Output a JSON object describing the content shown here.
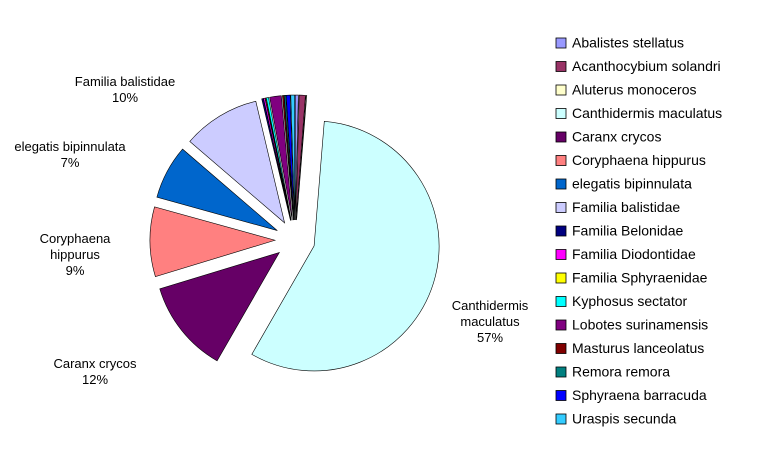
{
  "chart_data": {
    "type": "pie",
    "categories": [
      "Abalistes stellatus",
      "Acanthocybium solandri",
      "Aluterus monoceros",
      "Canthidermis maculatus",
      "Caranx crycos",
      "Coryphaena hippurus",
      "elegatis bipinnulata",
      "Familia balistidae",
      "Familia Belonidae",
      "Familia Diodontidae",
      "Familia Sphyraenidae",
      "Kyphosus sectator",
      "Lobotes surinamensis",
      "Masturus lanceolatus",
      "Remora remora",
      "Sphyraena barracuda",
      "Uraspis secunda"
    ],
    "values": [
      0.4,
      0.8,
      0.1,
      57,
      12,
      9,
      7,
      10,
      0.2,
      0.2,
      0.1,
      0.3,
      1.5,
      0.2,
      0.2,
      0.5,
      0.5
    ],
    "value_labels": [
      null,
      null,
      null,
      "57%",
      "12%",
      "9%",
      "7%",
      "10%",
      null,
      null,
      null,
      null,
      null,
      null,
      null,
      null,
      null
    ],
    "colors": [
      "#9999ff",
      "#993366",
      "#ffffcc",
      "#ccffff",
      "#660066",
      "#ff8080",
      "#0066cc",
      "#ccccff",
      "#000080",
      "#ff00ff",
      "#ffff00",
      "#00ffff",
      "#800080",
      "#800000",
      "#008080",
      "#0000ff",
      "#33ccff"
    ],
    "legend": "right"
  }
}
